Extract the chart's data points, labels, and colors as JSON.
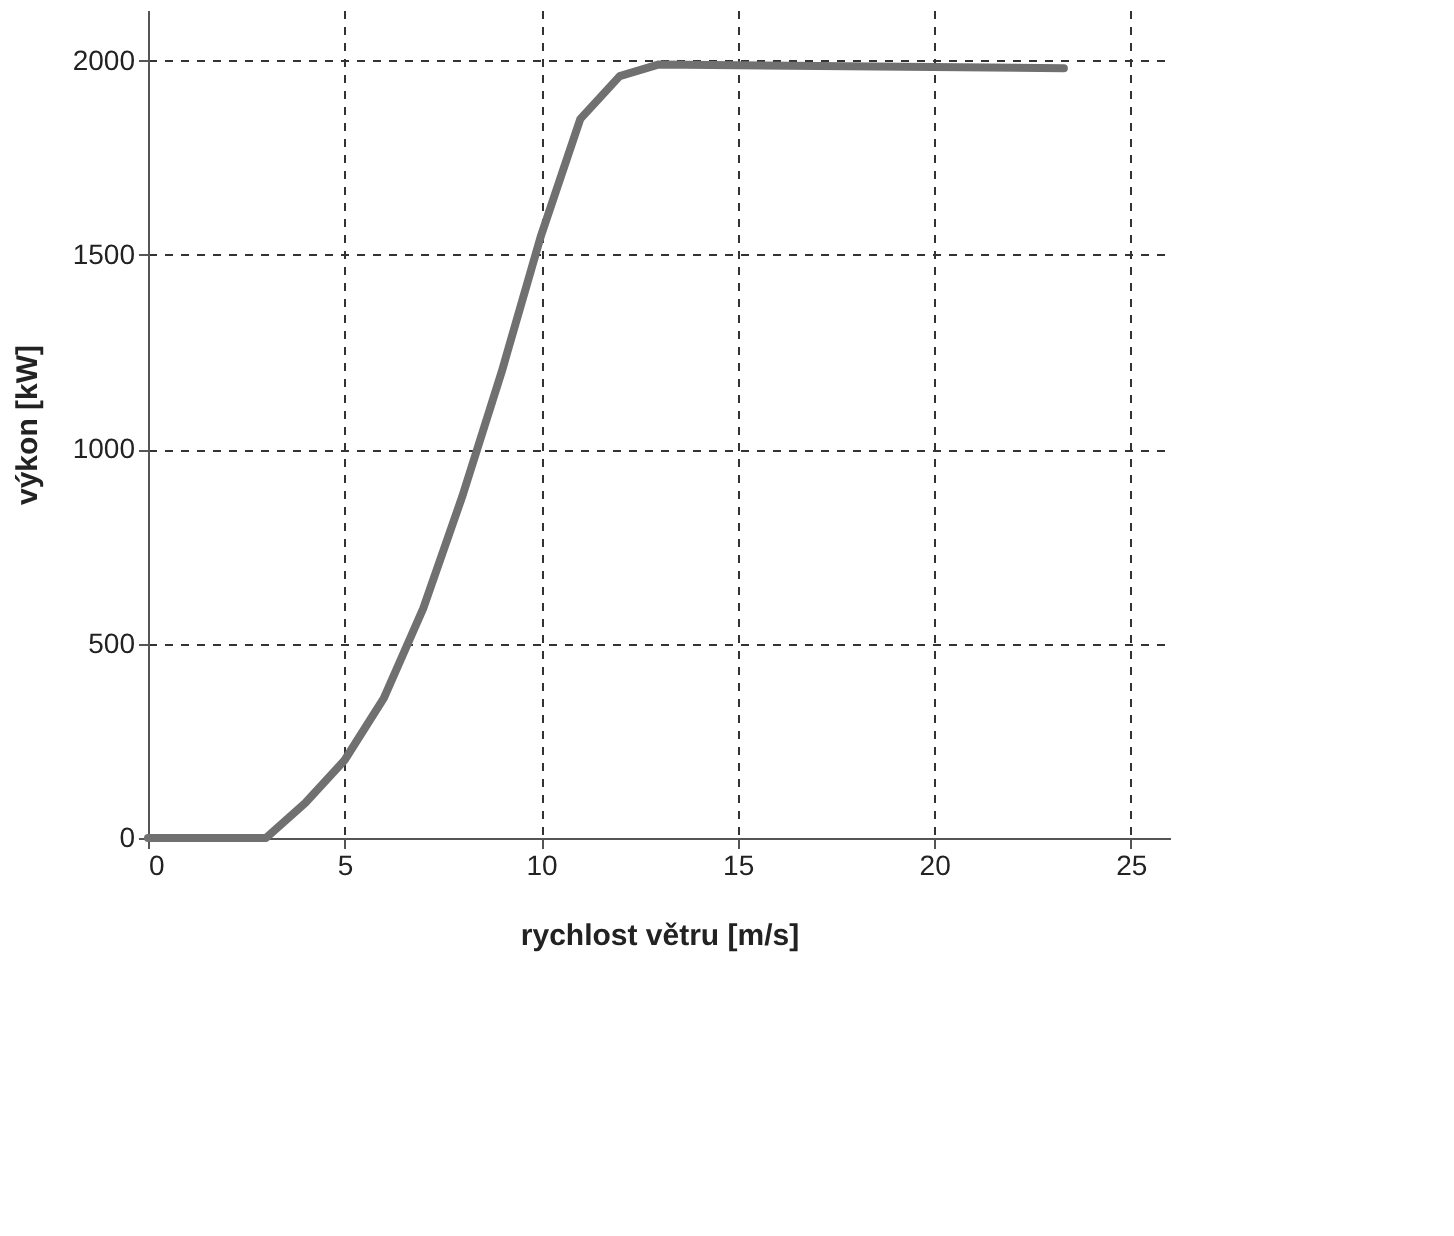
{
  "chart_data": {
    "type": "line",
    "xlabel": "rychlost větru [m/s]",
    "ylabel": "výkon [kW]",
    "x": [
      0,
      3,
      4,
      5,
      6,
      7,
      8,
      9,
      10,
      11,
      12,
      13,
      23.3
    ],
    "series": [
      {
        "color": "#707070",
        "values": [
          0,
          0,
          90,
          200,
          360,
          590,
          880,
          1200,
          1550,
          1850,
          1960,
          1990,
          1980
        ]
      }
    ],
    "xlim": [
      0,
      26
    ],
    "ylim": [
      0,
      2130
    ],
    "xticks": [
      0,
      5,
      10,
      15,
      20,
      25
    ],
    "yticks": [
      0,
      500,
      1000,
      1500,
      2000
    ],
    "grid": true,
    "marker": "none",
    "line_style": "solid"
  }
}
